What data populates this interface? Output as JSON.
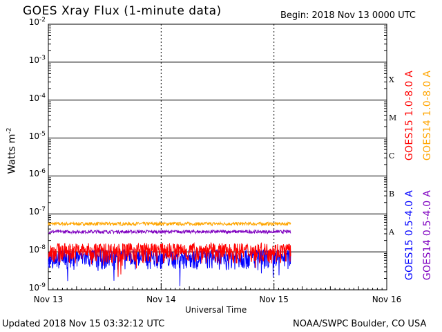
{
  "header": {
    "title": "GOES Xray Flux (1-minute data)",
    "begin": "Begin:  2018 Nov 13 0000 UTC"
  },
  "footer": {
    "updated": "Updated 2018 Nov 15 03:32:12 UTC",
    "credit": "NOAA/SWPC Boulder, CO USA"
  },
  "chart_data": {
    "type": "line",
    "title": "GOES Xray Flux (1-minute data)",
    "xlabel": "Universal Time",
    "ylabel": "Watts m",
    "ylabel_sup": "-2",
    "yscale": "log",
    "ylim": [
      1e-09,
      0.01
    ],
    "xlim_days": [
      0,
      3
    ],
    "x_ticks": [
      "Nov 13",
      "Nov 14",
      "Nov 15",
      "Nov 16"
    ],
    "y_ticks": [
      {
        "base": "10",
        "exp": "-2"
      },
      {
        "base": "10",
        "exp": "-3"
      },
      {
        "base": "10",
        "exp": "-4"
      },
      {
        "base": "10",
        "exp": "-5"
      },
      {
        "base": "10",
        "exp": "-6"
      },
      {
        "base": "10",
        "exp": "-7"
      },
      {
        "base": "10",
        "exp": "-8"
      },
      {
        "base": "10",
        "exp": "-9"
      }
    ],
    "flare_classes": [
      "X",
      "M",
      "C",
      "B",
      "A"
    ],
    "grid": "horizontal lines at each decade",
    "series": [
      {
        "name": "GOES15 1.0-8.0 A",
        "color": "#ff0000",
        "level": 1.1e-08,
        "x_end_day": 2.15
      },
      {
        "name": "GOES14 1.0-8.0 A",
        "color": "#ffa500",
        "level": 5.5e-08,
        "x_end_day": 2.15
      },
      {
        "name": "GOES15 0.5-4.0 A",
        "color": "#0000ff",
        "level": 7.5e-09,
        "x_end_day": 2.15
      },
      {
        "name": "GOES14 0.5-4.0 A",
        "color": "#7f00c0",
        "level": 3.4e-08,
        "x_end_day": 2.15
      }
    ]
  }
}
